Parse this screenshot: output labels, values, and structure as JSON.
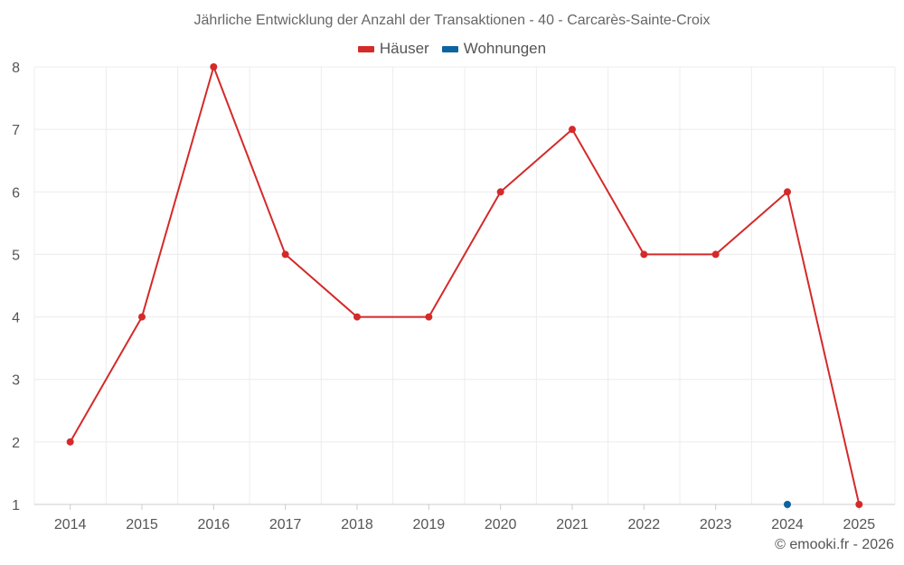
{
  "title": "Jährliche Entwicklung der Anzahl der Transaktionen - 40 - Carcarès-Sainte-Croix",
  "credit": "© emooki.fr - 2026",
  "legend": [
    {
      "label": "Häuser",
      "color": "#d42a2a"
    },
    {
      "label": "Wohnungen",
      "color": "#0b64a0"
    }
  ],
  "chart_data": {
    "type": "line",
    "title": "Jährliche Entwicklung der Anzahl der Transaktionen - 40 - Carcarès-Sainte-Croix",
    "x": [
      "2014",
      "2015",
      "2016",
      "2017",
      "2018",
      "2019",
      "2020",
      "2021",
      "2022",
      "2023",
      "2024",
      "2025"
    ],
    "series": [
      {
        "name": "Häuser",
        "color": "#d42a2a",
        "values": [
          2,
          4,
          8,
          5,
          4,
          4,
          6,
          7,
          5,
          5,
          6,
          1
        ]
      },
      {
        "name": "Wohnungen",
        "color": "#0b64a0",
        "values": [
          null,
          null,
          null,
          null,
          null,
          null,
          null,
          null,
          null,
          null,
          1,
          null
        ]
      }
    ],
    "ylim": [
      1,
      8
    ],
    "yticks": [
      "1",
      "2",
      "3",
      "4",
      "5",
      "6",
      "7",
      "8"
    ],
    "xlabel": "",
    "ylabel": "",
    "grid": true,
    "legend_position": "top-center"
  }
}
